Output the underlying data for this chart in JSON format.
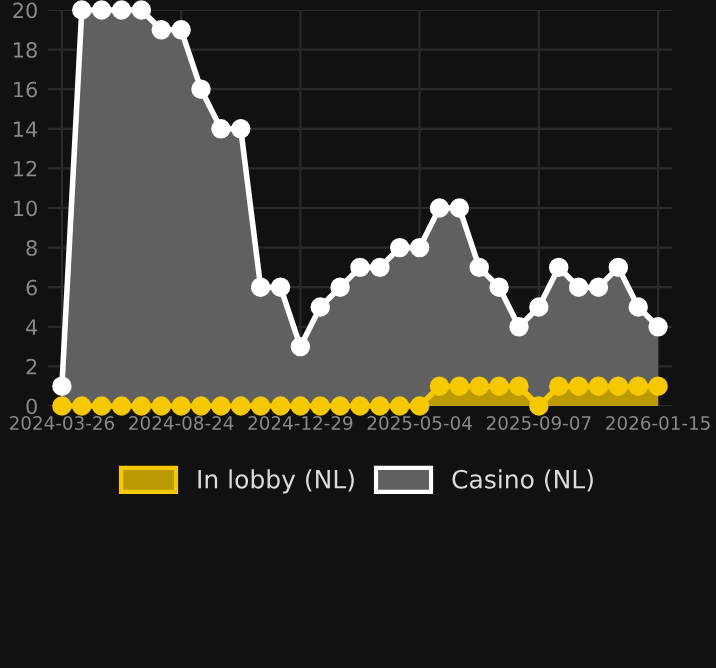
{
  "chart_data": {
    "type": "area",
    "categories": [
      "2024-03-26",
      null,
      null,
      null,
      null,
      null,
      "2024-08-24",
      null,
      null,
      null,
      null,
      null,
      "2024-12-29",
      null,
      null,
      null,
      null,
      null,
      "2025-05-04",
      null,
      null,
      null,
      null,
      null,
      "2025-09-07",
      null,
      null,
      null,
      null,
      null,
      "2026-01-15"
    ],
    "series": [
      {
        "name": "Casino (NL)",
        "color": "#ffffff",
        "values": [
          1,
          20,
          20,
          20,
          20,
          19,
          19,
          16,
          14,
          14,
          6,
          6,
          3,
          5,
          6,
          7,
          7,
          8,
          8,
          10,
          10,
          7,
          6,
          4,
          5,
          7,
          6,
          6,
          7,
          5,
          4
        ]
      },
      {
        "name": "In lobby (NL)",
        "color": "#f5c800",
        "values": [
          0,
          0,
          0,
          0,
          0,
          0,
          0,
          0,
          0,
          0,
          0,
          0,
          0,
          0,
          0,
          0,
          0,
          0,
          0,
          1,
          1,
          1,
          1,
          1,
          0,
          1,
          1,
          1,
          1,
          1,
          1
        ]
      }
    ],
    "ylim": [
      0,
      20
    ],
    "yticks": [
      0,
      2,
      4,
      6,
      8,
      10,
      12,
      14,
      16,
      18,
      20
    ],
    "grid": true,
    "legend": "bottom",
    "marker": "circle"
  }
}
